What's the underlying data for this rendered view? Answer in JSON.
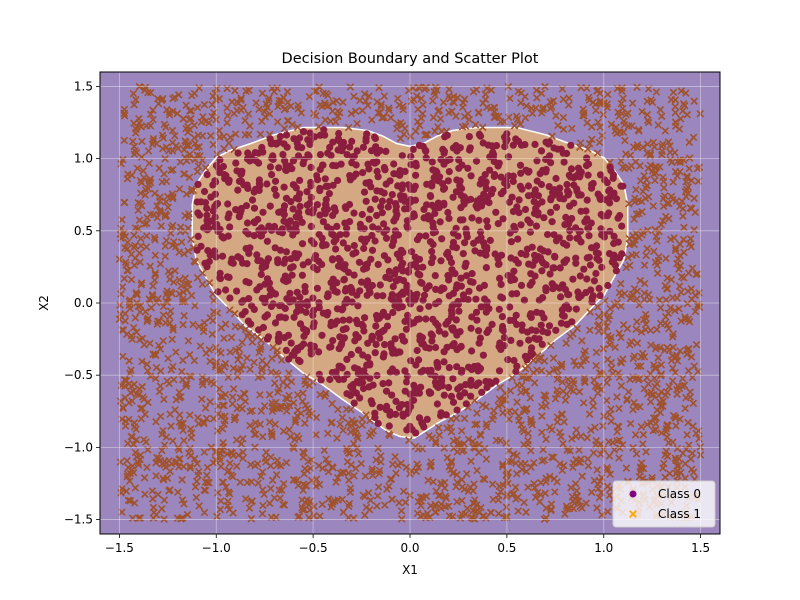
{
  "chart_data": {
    "type": "scatter",
    "title": "Decision Boundary and Scatter Plot",
    "xlabel": "X1",
    "ylabel": "X2",
    "xlim": [
      -1.6,
      1.6
    ],
    "ylim": [
      -1.6,
      1.6
    ],
    "xticks": [
      -1.5,
      -1.0,
      -0.5,
      0.0,
      0.5,
      1.0,
      1.5
    ],
    "yticks": [
      -1.5,
      -1.0,
      -0.5,
      0.0,
      0.5,
      1.0,
      1.5
    ],
    "xtick_labels": [
      "−1.5",
      "−1.0",
      "−0.5",
      "0.0",
      "0.5",
      "1.0",
      "1.5"
    ],
    "ytick_labels": [
      "−1.5",
      "−1.0",
      "−0.5",
      "0.0",
      "0.5",
      "1.0",
      "1.5"
    ],
    "grid": true,
    "legend_position": "lower-right",
    "decision_regions": {
      "outside_heart_color": "#9b87bd",
      "inside_heart_color": "#d4a882",
      "heart_boundary_color": "#ffffff"
    },
    "series": [
      {
        "name": "Class 0",
        "marker": "circle",
        "color": "#8b1e3f",
        "legend_color": "#800080",
        "region": "inside heart",
        "x_range": [
          -1.1,
          1.1
        ],
        "y_range": [
          -0.95,
          1.2
        ]
      },
      {
        "name": "Class 1",
        "marker": "x",
        "color": "#a0522d",
        "legend_color": "#ffa500",
        "region": "outside heart",
        "x_range": [
          -1.5,
          1.5
        ],
        "y_range": [
          -1.5,
          1.5
        ]
      }
    ]
  }
}
